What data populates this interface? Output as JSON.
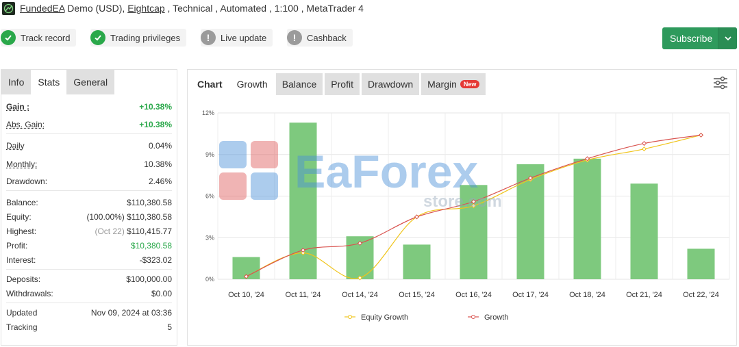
{
  "header": {
    "name": "FundedEA",
    "account_type": "Demo (USD), ",
    "broker": "Eightcap",
    "details": " , Technical , Automated , 1:100 , MetaTrader 4"
  },
  "badges": [
    {
      "label": "Track record",
      "status": "ok"
    },
    {
      "label": "Trading privileges",
      "status": "ok"
    },
    {
      "label": "Live update",
      "status": "warn"
    },
    {
      "label": "Cashback",
      "status": "warn"
    }
  ],
  "subscribe": {
    "label": "Subscribe"
  },
  "left_tabs": [
    "Info",
    "Stats",
    "General"
  ],
  "stats": {
    "gain_label": "Gain :",
    "gain": "+10.38%",
    "abs_gain_label": "Abs. Gain:",
    "abs_gain": "+10.38%",
    "daily_label": "Daily",
    "daily": "0.04%",
    "monthly_label": "Monthly:",
    "monthly": "10.38%",
    "drawdown_label": "Drawdown:",
    "drawdown": "2.46%",
    "balance_label": "Balance:",
    "balance": "$110,380.58",
    "equity_label": "Equity:",
    "equity_pct": "(100.00%)",
    "equity": "$110,380.58",
    "highest_label": "Highest:",
    "highest_date": "(Oct 22)",
    "highest": "$110,415.77",
    "profit_label": "Profit:",
    "profit": "$10,380.58",
    "interest_label": "Interest:",
    "interest": "-$323.02",
    "deposits_label": "Deposits:",
    "deposits": "$100,000.00",
    "withdrawals_label": "Withdrawals:",
    "withdrawals": "$0.00",
    "updated_label": "Updated",
    "updated": "Nov 09, 2024 at 03:36",
    "tracking_label": "Tracking",
    "tracking": "5"
  },
  "chart_tabs": [
    "Chart",
    "Growth",
    "Balance",
    "Profit",
    "Drawdown",
    "Margin"
  ],
  "new_badge": "New",
  "watermark": {
    "line1": "EaForex",
    "line2": "store.com"
  },
  "colors": {
    "bar": "#7ec97e",
    "growth_line": "#d9534f",
    "equity_line": "#f0c419",
    "accent_green": "#2aa84a",
    "subscribe": "#2e9a5c"
  },
  "chart_data": {
    "type": "bar",
    "categories": [
      "Oct 10, '24",
      "Oct 11, '24",
      "Oct 14, '24",
      "Oct 15, '24",
      "Oct 16, '24",
      "Oct 17, '24",
      "Oct 18, '24",
      "Oct 21, '24",
      "Oct 22, '24"
    ],
    "bars": [
      1.6,
      11.3,
      3.1,
      2.5,
      6.8,
      8.3,
      8.7,
      6.9,
      2.2
    ],
    "series": [
      {
        "name": "Equity Growth",
        "type": "line",
        "values": [
          0.2,
          1.9,
          0.1,
          4.5,
          5.3,
          7.2,
          8.6,
          9.4,
          10.4
        ]
      },
      {
        "name": "Growth",
        "type": "line",
        "values": [
          0.2,
          2.1,
          2.6,
          4.5,
          5.6,
          7.3,
          8.7,
          9.8,
          10.4
        ]
      }
    ],
    "yticks": [
      "0%",
      "3%",
      "6%",
      "9%",
      "12%"
    ],
    "ylim": [
      0,
      12
    ],
    "grid": true,
    "legend": "bottom"
  }
}
